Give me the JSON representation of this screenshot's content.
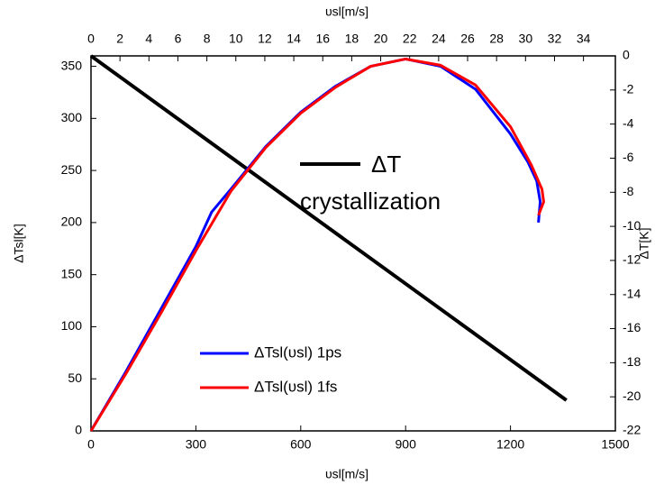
{
  "chart_data": {
    "type": "line",
    "xlabel": "υsl[m/s]",
    "x2label": "υsl[m/s]",
    "ylabel": "ΔTsl[K]",
    "y2label": "ΔT[K]",
    "xlim": [
      0,
      1500
    ],
    "xticks": [
      0,
      300,
      600,
      900,
      1200,
      1500
    ],
    "x2lim": [
      0,
      36.2
    ],
    "x2ticks": [
      0,
      2,
      4,
      6,
      8,
      10,
      12,
      14,
      16,
      18,
      20,
      22,
      24,
      26,
      28,
      30,
      32,
      34
    ],
    "ylim": [
      0,
      360
    ],
    "yticks": [
      0,
      50,
      100,
      150,
      200,
      250,
      300,
      350
    ],
    "y2lim": [
      -22,
      0
    ],
    "y2ticks": [
      0,
      -2,
      -4,
      -6,
      -8,
      -10,
      -12,
      -14,
      -16,
      -18,
      -20,
      -22
    ],
    "annotation": "crystallization",
    "series": [
      {
        "name": "ΔT",
        "color": "#000000",
        "axis": "y2",
        "legend": "inline",
        "x": [
          0,
          1360
        ],
        "values": [
          0,
          -20.2
        ]
      },
      {
        "name": "ΔTsl(υsl) 1ps",
        "color": "#0000ff",
        "x": [
          0,
          100,
          200,
          300,
          345,
          400,
          500,
          600,
          700,
          800,
          900,
          1000,
          1100,
          1200,
          1250,
          1275,
          1285,
          1280
        ],
        "values": [
          0,
          57,
          117,
          177,
          210,
          232,
          273,
          306,
          331,
          350,
          357,
          350,
          328,
          285,
          258,
          240,
          220,
          200
        ]
      },
      {
        "name": "ΔTsl(υsl) 1fs",
        "color": "#ff0000",
        "x": [
          0,
          100,
          200,
          300,
          400,
          500,
          600,
          700,
          800,
          900,
          1000,
          1100,
          1200,
          1260,
          1290,
          1295,
          1280
        ],
        "values": [
          0,
          55,
          113,
          173,
          230,
          272,
          305,
          330,
          350,
          357,
          351,
          332,
          292,
          255,
          232,
          220,
          207
        ]
      }
    ]
  }
}
